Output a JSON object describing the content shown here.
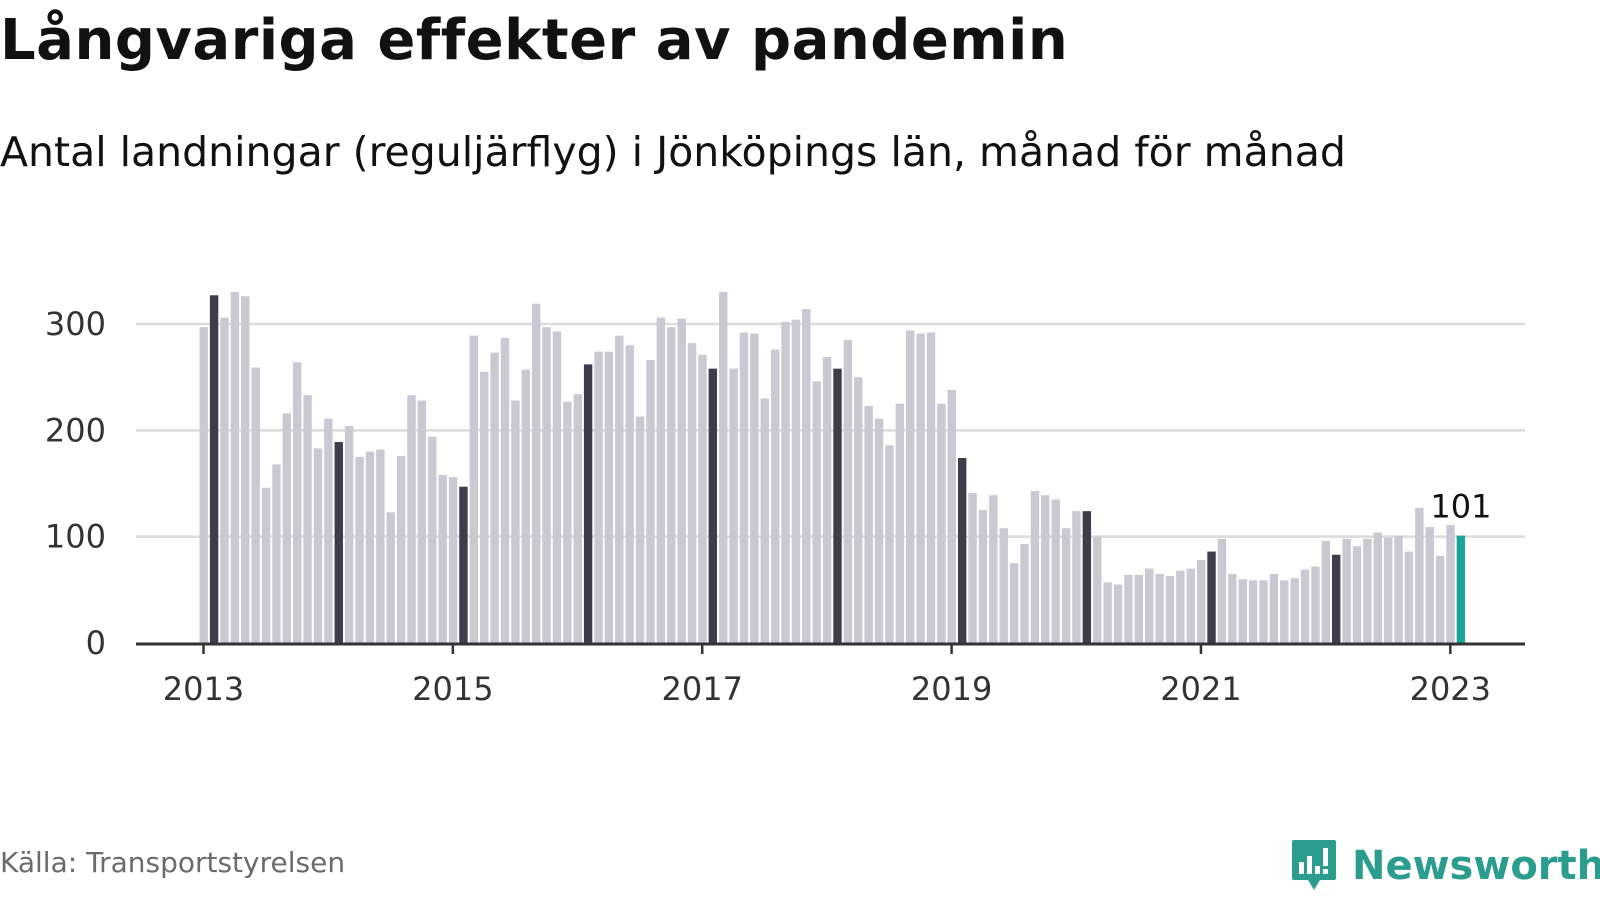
{
  "title": "Långvariga effekter av pandemin",
  "subtitle": "Antal landningar (reguljärflyg) i Jönköpings län, månad för månad",
  "source": "Källa: Transportstyrelsen",
  "brand": {
    "name": "Newsworthy",
    "icon": "newsworthy-logo-icon",
    "color": "#2a9d8f"
  },
  "colors": {
    "bar": "#c9c8d3",
    "highlight": "#3d3d4b",
    "latest": "#1aa497",
    "grid": "#dcdcdc",
    "axis": "#333333"
  },
  "chart_data": {
    "type": "bar",
    "start": "2013-01",
    "ylim": [
      0,
      340
    ],
    "yticks": [
      0,
      100,
      200,
      300
    ],
    "xticks": [
      "2013",
      "2015",
      "2017",
      "2019",
      "2021",
      "2023"
    ],
    "grid": true,
    "highlight_month": "February",
    "latest_label": "101",
    "values": [
      297,
      327,
      306,
      330,
      326,
      259,
      146,
      168,
      216,
      264,
      233,
      183,
      211,
      189,
      204,
      175,
      180,
      182,
      123,
      176,
      233,
      228,
      194,
      158,
      156,
      147,
      289,
      255,
      273,
      287,
      228,
      257,
      319,
      297,
      293,
      227,
      234,
      262,
      274,
      274,
      289,
      280,
      213,
      266,
      306,
      297,
      305,
      282,
      271,
      258,
      330,
      258,
      292,
      291,
      230,
      276,
      302,
      304,
      314,
      246,
      269,
      258,
      285,
      250,
      223,
      211,
      186,
      225,
      294,
      291,
      292,
      225,
      238,
      174,
      141,
      125,
      139,
      108,
      75,
      93,
      143,
      139,
      135,
      108,
      124,
      124,
      100,
      57,
      55,
      64,
      64,
      70,
      65,
      63,
      68,
      70,
      78,
      86,
      98,
      65,
      60,
      59,
      59,
      65,
      59,
      61,
      69,
      72,
      96,
      83,
      98,
      91,
      98,
      104,
      99,
      101,
      86,
      127,
      109,
      82,
      111,
      101
    ]
  }
}
